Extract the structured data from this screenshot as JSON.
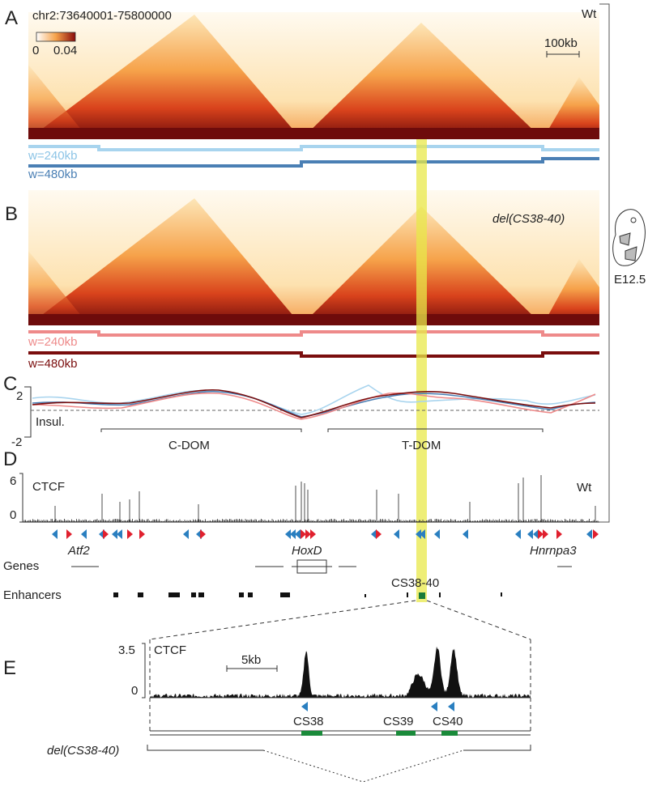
{
  "panels": {
    "A": {
      "label": "A",
      "region": "chr2:73640001-75800000",
      "colorbar": {
        "min": "0",
        "max": "0.04"
      },
      "condition": "Wt",
      "scale": "100kb",
      "tracks": [
        "w=240kb",
        "w=480kb"
      ]
    },
    "B": {
      "label": "B",
      "condition": "del(CS38-40)",
      "tracks": [
        "w=240kb",
        "w=480kb"
      ]
    },
    "C": {
      "label": "C",
      "ymax": "2",
      "ymin": "-2",
      "axis": "Insul.",
      "domains": [
        "C-DOM",
        "T-DOM"
      ]
    },
    "D": {
      "label": "D",
      "track": "CTCF",
      "ymax": "6",
      "ymin": "0",
      "condition": "Wt",
      "genes_row": "Genes",
      "genes": [
        "Atf2",
        "HoxD",
        "Hnrnpa3"
      ],
      "enhancers_row": "Enhancers",
      "highlight": "CS38-40"
    },
    "E": {
      "label": "E",
      "track": "CTCF",
      "ymax": "3.5",
      "ymin": "0",
      "scale": "5kb",
      "sites": [
        "CS38",
        "CS39",
        "CS40"
      ],
      "deletion": "del(CS38-40)"
    }
  },
  "side": {
    "stage": "E12.5"
  }
}
